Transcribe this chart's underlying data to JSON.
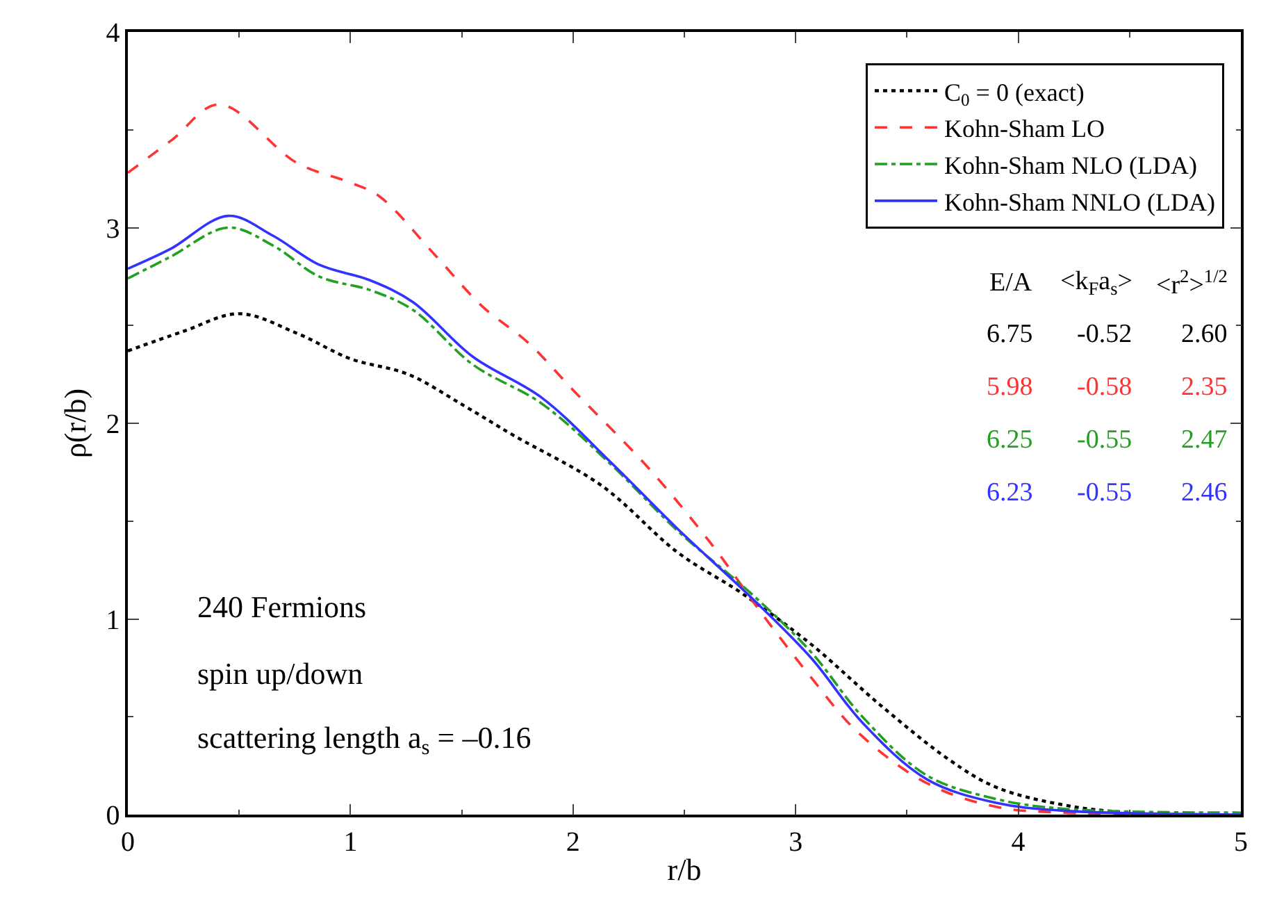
{
  "chart_data": {
    "type": "line",
    "xlabel": "r/b",
    "ylabel": "ρ(r/b)",
    "xlim": [
      0,
      5
    ],
    "ylim": [
      0,
      4
    ],
    "xticks": [
      0,
      1,
      2,
      3,
      4,
      5
    ],
    "yticks": [
      0,
      1,
      2,
      3,
      4
    ],
    "grid": false,
    "legend": "top right",
    "series": [
      {
        "name": "C$_{0}$ = 0 (exact)",
        "color": "#000000",
        "line_style": "dotted",
        "x": [
          0,
          0.25,
          0.5,
          0.76,
          1.0,
          1.26,
          1.51,
          1.73,
          2.13,
          2.47,
          2.76,
          3.07,
          3.38,
          3.69,
          3.9,
          4.2,
          4.5,
          5
        ],
        "values": [
          2.37,
          2.47,
          2.56,
          2.46,
          2.33,
          2.25,
          2.09,
          1.94,
          1.68,
          1.34,
          1.13,
          0.87,
          0.56,
          0.28,
          0.14,
          0.05,
          0.01,
          0
        ]
      },
      {
        "name": "Kohn-Sham LO",
        "color": "#ff3333",
        "line_style": "dashed",
        "x": [
          0,
          0.2,
          0.41,
          0.76,
          1.0,
          1.13,
          1.38,
          1.59,
          1.8,
          2.0,
          2.34,
          2.63,
          2.84,
          3.07,
          3.28,
          3.59,
          3.9,
          4.2,
          5
        ],
        "values": [
          3.28,
          3.45,
          3.63,
          3.33,
          3.23,
          3.16,
          2.86,
          2.6,
          2.41,
          2.17,
          1.77,
          1.37,
          1.04,
          0.7,
          0.42,
          0.16,
          0.04,
          0.01,
          0
        ]
      },
      {
        "name": "Kohn-Sham NLO (LDA)",
        "color": "#22a022",
        "line_style": "dashdot",
        "x": [
          0,
          0.19,
          0.45,
          0.65,
          0.86,
          1.09,
          1.28,
          1.55,
          1.86,
          2.17,
          2.47,
          2.8,
          3.07,
          3.3,
          3.59,
          3.9,
          4.2,
          5
        ],
        "values": [
          2.74,
          2.85,
          3.0,
          2.91,
          2.75,
          2.68,
          2.58,
          2.3,
          2.1,
          1.79,
          1.45,
          1.13,
          0.83,
          0.5,
          0.2,
          0.08,
          0.03,
          0.01
        ]
      },
      {
        "name": "Kohn-Sham NNLO (LDA)",
        "color": "#3333ff",
        "line_style": "solid",
        "x": [
          0,
          0.19,
          0.45,
          0.65,
          0.86,
          1.09,
          1.28,
          1.55,
          1.86,
          2.17,
          2.47,
          2.8,
          3.07,
          3.3,
          3.59,
          3.9,
          4.2,
          5
        ],
        "values": [
          2.79,
          2.89,
          3.06,
          2.96,
          2.81,
          2.73,
          2.62,
          2.34,
          2.13,
          1.8,
          1.46,
          1.11,
          0.8,
          0.47,
          0.18,
          0.06,
          0.02,
          0
        ]
      }
    ],
    "annotations": [
      "E/A",
      "<k$_{F}$a$_{s}$>",
      "<r$^{2}$>$^{1/2}$",
      "6.75",
      "-0.52",
      "2.60",
      "5.98",
      "-0.58",
      "2.35",
      "6.25",
      "-0.55",
      "2.47",
      "6.23",
      "-0.55",
      "2.46",
      "240 Fermions",
      "spin up/down",
      "scattering length a$_{s}$ = –0.16"
    ]
  }
}
